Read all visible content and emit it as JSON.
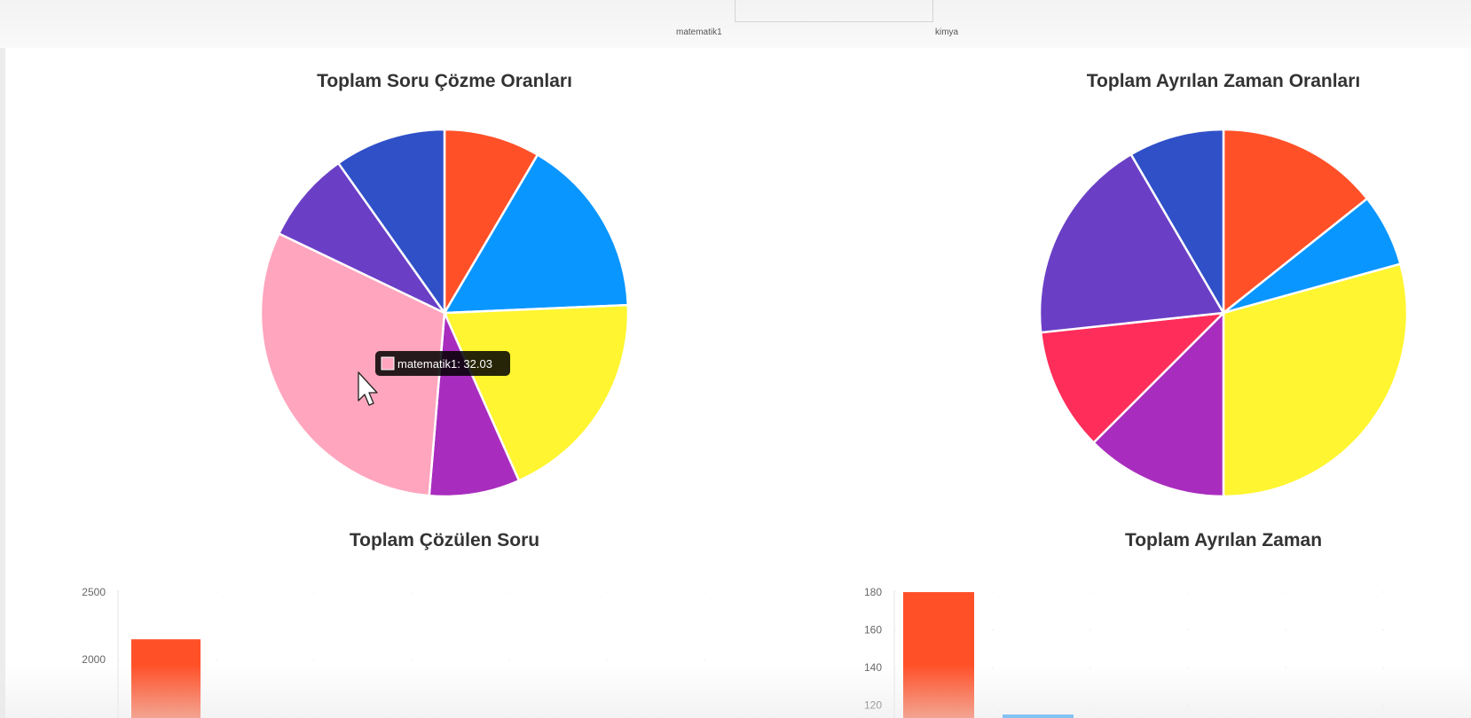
{
  "top": {
    "labels": [
      "matematik1",
      "kimya"
    ]
  },
  "titles": {
    "pie_left": "Toplam Soru Çözme Oranları",
    "pie_right": "Toplam Ayrılan Zaman Oranları",
    "bar_left": "Toplam Çözülen Soru",
    "bar_right": "Toplam Ayrılan Zaman"
  },
  "tooltip": {
    "label": "matematik1",
    "value": "32.03",
    "text": "matematik1: 32.03",
    "color": "#FFA5BE"
  },
  "colors": {
    "orange": "#FF5028",
    "blue": "#0A96FF",
    "yellow": "#FFF530",
    "purple": "#A82DBE",
    "pink": "#FFA5BE",
    "violet": "#6A3FC6",
    "indigo": "#3050C8",
    "crimson": "#FF2D5A"
  },
  "chart_data": [
    {
      "type": "pie",
      "title": "Toplam Soru Çözme Oranları",
      "slices": [
        {
          "label": "",
          "value": 8.8,
          "color": "#FF5028"
        },
        {
          "label": "",
          "value": 16.5,
          "color": "#0A96FF"
        },
        {
          "label": "",
          "value": 19.8,
          "color": "#FFF530"
        },
        {
          "label": "",
          "value": 8.3,
          "color": "#A82DBE"
        },
        {
          "label": "matematik1",
          "value": 32.03,
          "color": "#FFA5BE"
        },
        {
          "label": "",
          "value": 8.4,
          "color": "#6A3FC6"
        },
        {
          "label": "",
          "value": 10.2,
          "color": "#3050C8"
        }
      ]
    },
    {
      "type": "pie",
      "title": "Toplam Ayrılan Zaman Oranları",
      "slices": [
        {
          "label": "",
          "value": 14.3,
          "color": "#FF5028"
        },
        {
          "label": "",
          "value": 6.4,
          "color": "#0A96FF"
        },
        {
          "label": "",
          "value": 29.3,
          "color": "#FFF530"
        },
        {
          "label": "",
          "value": 12.5,
          "color": "#A82DBE"
        },
        {
          "label": "",
          "value": 10.8,
          "color": "#FF2D5A"
        },
        {
          "label": "",
          "value": 18.3,
          "color": "#6A3FC6"
        },
        {
          "label": "",
          "value": 8.4,
          "color": "#3050C8"
        }
      ]
    },
    {
      "type": "bar",
      "title": "Toplam Çözülen Soru",
      "yticks": [
        2500,
        2000
      ],
      "values": [
        2150
      ],
      "colors": [
        "#FF5028"
      ]
    },
    {
      "type": "bar",
      "title": "Toplam Ayrılan Zaman",
      "yticks": [
        180,
        160,
        140,
        120
      ],
      "values": [
        180,
        115
      ],
      "colors": [
        "#FF5028",
        "#0A96FF"
      ]
    }
  ]
}
